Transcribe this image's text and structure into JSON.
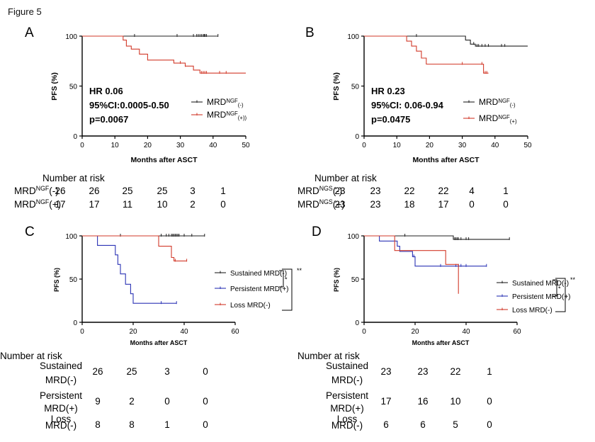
{
  "figure_title": "Figure 5",
  "colors": {
    "neg": "#222222",
    "pos": "#d23a2a",
    "persistent": "#2b33b5",
    "loss": "#d23a2a"
  },
  "chart_data": [
    {
      "type": "line",
      "panel": "A",
      "xlabel": "Months after ASCT",
      "ylabel": "PFS (%)",
      "xlim": [
        0,
        50
      ],
      "ylim": [
        0,
        100
      ],
      "xticks": [
        "0",
        "10",
        "20",
        "30",
        "40",
        "50"
      ],
      "yticks": [
        "0",
        "50",
        "100"
      ],
      "stats": [
        "HR 0.06",
        "95%CI:0.0005-0.50",
        "p=0.0067"
      ],
      "legend_position": "middle-right",
      "series": [
        {
          "name": "MRD",
          "sup": "NGF",
          "sub": "(-)",
          "color": "#222222",
          "steps": [
            [
              0,
              100
            ],
            [
              41.5,
              100
            ]
          ],
          "censor": [
            16,
            29,
            34,
            35,
            35.5,
            36,
            36.5,
            37,
            37.3,
            37.6,
            38,
            41.5
          ]
        },
        {
          "name": "MRD",
          "sup": "NGF",
          "sub": "(+))",
          "color": "#d23a2a",
          "steps": [
            [
              0,
              100
            ],
            [
              12.5,
              100
            ],
            [
              12.5,
              96
            ],
            [
              13.5,
              96
            ],
            [
              13.5,
              90
            ],
            [
              15,
              90
            ],
            [
              15,
              87
            ],
            [
              17.5,
              87
            ],
            [
              17.5,
              82
            ],
            [
              20,
              82
            ],
            [
              20,
              76
            ],
            [
              28,
              76
            ],
            [
              28,
              73
            ],
            [
              31.5,
              73
            ],
            [
              31.5,
              70
            ],
            [
              34,
              70
            ],
            [
              34,
              66
            ],
            [
              36,
              66
            ],
            [
              36,
              63
            ],
            [
              50,
              63
            ]
          ],
          "censor": [
            30,
            31.5,
            36.5,
            37,
            37.5,
            38,
            42,
            44
          ]
        }
      ],
      "risk_table": {
        "title": "Number at risk",
        "rows": [
          {
            "label": "MRD",
            "sup": "NGF",
            "tail": "(-)",
            "values": [
              "26",
              "26",
              "25",
              "25",
              "3",
              "1"
            ]
          },
          {
            "label": "MRD",
            "sup": "NGF",
            "tail": "(+)",
            "values": [
              "17",
              "17",
              "11",
              "10",
              "2",
              "0"
            ]
          }
        ]
      }
    },
    {
      "type": "line",
      "panel": "B",
      "xlabel": "Months after ASCT",
      "ylabel": "PFS (%)",
      "xlim": [
        0,
        50
      ],
      "ylim": [
        0,
        100
      ],
      "xticks": [
        "0",
        "10",
        "20",
        "30",
        "40",
        "50"
      ],
      "yticks": [
        "0",
        "50",
        "100"
      ],
      "stats": [
        "HR 0.23",
        "95%CI: 0.06-0.94",
        "p=0.0475"
      ],
      "legend_position": "middle-right",
      "series": [
        {
          "name": "MRD",
          "sup": "NGF",
          "sub": "(-)",
          "color": "#222222",
          "steps": [
            [
              0,
              100
            ],
            [
              31,
              100
            ],
            [
              31,
              96
            ],
            [
              32.5,
              96
            ],
            [
              32.5,
              92
            ],
            [
              34,
              92
            ],
            [
              34,
              90
            ],
            [
              50,
              90
            ]
          ],
          "censor": [
            16,
            33.5,
            34.5,
            35,
            36,
            37,
            38,
            42,
            43
          ]
        },
        {
          "name": "MRD",
          "sup": "NGF",
          "sub": "(+)",
          "color": "#d23a2a",
          "steps": [
            [
              0,
              100
            ],
            [
              13,
              100
            ],
            [
              13,
              95
            ],
            [
              14.5,
              95
            ],
            [
              14.5,
              90
            ],
            [
              16,
              90
            ],
            [
              16,
              85
            ],
            [
              17.5,
              85
            ],
            [
              17.5,
              78
            ],
            [
              19,
              78
            ],
            [
              19,
              72
            ],
            [
              36.5,
              72
            ],
            [
              36.5,
              63
            ],
            [
              38,
              63
            ]
          ],
          "censor": [
            30,
            36,
            37,
            37.5
          ]
        }
      ],
      "risk_table": {
        "title": "Number at risk",
        "rows": [
          {
            "label": "MRD",
            "sup": "NGS",
            "tail": "(-)",
            "values": [
              "23",
              "23",
              "22",
              "22",
              "4",
              "1"
            ]
          },
          {
            "label": "MRD",
            "sup": "NGS",
            "tail": "(+)",
            "values": [
              "23",
              "23",
              "18",
              "17",
              "0",
              "0"
            ]
          }
        ]
      }
    },
    {
      "type": "line",
      "panel": "C",
      "xlabel": "Months after ASCT",
      "ylabel": "PFS (%)",
      "xlim": [
        0,
        60
      ],
      "ylim": [
        0,
        100
      ],
      "xticks": [
        "0",
        "20",
        "40",
        "60"
      ],
      "yticks": [
        "0",
        "50",
        "100"
      ],
      "legend_position": "middle-right",
      "significance": {
        "inner": "*",
        "outer": "**"
      },
      "series": [
        {
          "name": "Sustained MRD(-)",
          "color": "#222222",
          "steps": [
            [
              0,
              100
            ],
            [
              48,
              100
            ]
          ],
          "censor": [
            15,
            31,
            33,
            34,
            35,
            35.5,
            36,
            36.5,
            37,
            37.5,
            38,
            40,
            43,
            48
          ]
        },
        {
          "name": "Persistent MRD(+)",
          "color": "#2b33b5",
          "steps": [
            [
              0,
              100
            ],
            [
              6,
              100
            ],
            [
              6,
              89
            ],
            [
              13,
              89
            ],
            [
              13,
              78
            ],
            [
              14,
              78
            ],
            [
              14,
              67
            ],
            [
              15,
              67
            ],
            [
              15,
              56
            ],
            [
              17,
              56
            ],
            [
              17,
              44
            ],
            [
              19,
              44
            ],
            [
              19,
              33
            ],
            [
              20,
              33
            ],
            [
              20,
              22
            ],
            [
              37,
              22
            ]
          ],
          "censor": [
            31,
            37
          ]
        },
        {
          "name": "Loss MRD(-)",
          "color": "#d23a2a",
          "steps": [
            [
              0,
              100
            ],
            [
              30,
              100
            ],
            [
              30,
              88
            ],
            [
              35,
              88
            ],
            [
              35,
              75
            ],
            [
              36,
              75
            ],
            [
              36,
              71
            ],
            [
              41,
              71
            ]
          ],
          "censor": [
            36.5,
            41
          ]
        }
      ],
      "risk_table": {
        "title": "Number at risk",
        "rows": [
          {
            "label1": "Sustained",
            "label2": "MRD(-)",
            "values": [
              "26",
              "25",
              "3",
              "0"
            ]
          },
          {
            "label1": "Persistent",
            "label2": "MRD(+)",
            "values": [
              "9",
              "2",
              "0",
              "0"
            ]
          },
          {
            "label1": "Loss",
            "label2": "MRD(-)",
            "values": [
              "8",
              "8",
              "1",
              "0"
            ]
          }
        ]
      }
    },
    {
      "type": "line",
      "panel": "D",
      "xlabel": "Months after ASCT",
      "ylabel": "PFS (%)",
      "xlim": [
        0,
        60
      ],
      "ylim": [
        0,
        100
      ],
      "xticks": [
        "0",
        "20",
        "40",
        "60"
      ],
      "yticks": [
        "0",
        "50",
        "100"
      ],
      "legend_position": "middle-right",
      "significance": {
        "inner": "*",
        "outer": "**"
      },
      "series": [
        {
          "name": "Sustained MRD(-)",
          "color": "#222222",
          "steps": [
            [
              0,
              100
            ],
            [
              35,
              100
            ],
            [
              35,
              96
            ],
            [
              57,
              96
            ]
          ],
          "censor": [
            16,
            35.5,
            36,
            36.5,
            37,
            38,
            40,
            41,
            57
          ]
        },
        {
          "name": "Persistent MRD(+)",
          "color": "#2b33b5",
          "steps": [
            [
              0,
              100
            ],
            [
              6,
              100
            ],
            [
              6,
              94
            ],
            [
              13,
              94
            ],
            [
              13,
              88
            ],
            [
              14,
              88
            ],
            [
              14,
              82
            ],
            [
              19,
              82
            ],
            [
              19,
              76
            ],
            [
              20,
              76
            ],
            [
              20,
              65
            ],
            [
              48,
              65
            ]
          ],
          "censor": [
            19.5,
            30,
            36,
            37,
            38,
            40,
            48
          ]
        },
        {
          "name": "Loss MRD(-)",
          "color": "#d23a2a",
          "steps": [
            [
              0,
              100
            ],
            [
              12,
              100
            ],
            [
              12,
              83
            ],
            [
              32,
              83
            ],
            [
              32,
              67
            ],
            [
              37,
              67
            ],
            [
              37,
              33
            ]
          ],
          "censor": []
        }
      ],
      "risk_table": {
        "title": "Number at risk",
        "rows": [
          {
            "label1": "Sustained",
            "label2": "MRD(-)",
            "values": [
              "23",
              "23",
              "22",
              "1"
            ]
          },
          {
            "label1": "Persistent",
            "label2": "MRD(+)",
            "values": [
              "17",
              "16",
              "10",
              "0"
            ]
          },
          {
            "label1": "Loss",
            "label2": "MRD(-)",
            "values": [
              "6",
              "6",
              "5",
              "0"
            ]
          }
        ]
      }
    }
  ]
}
